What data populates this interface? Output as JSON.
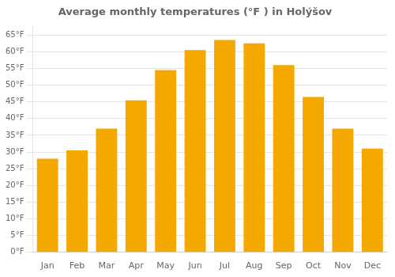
{
  "chart_data": {
    "type": "bar",
    "title": "Average monthly temperatures (°F ) in Holýšov",
    "categories": [
      "Jan",
      "Feb",
      "Mar",
      "Apr",
      "May",
      "Jun",
      "Jul",
      "Aug",
      "Sep",
      "Oct",
      "Nov",
      "Dec"
    ],
    "values": [
      28,
      30.5,
      37,
      45.5,
      54.5,
      60.5,
      63.5,
      62.5,
      56,
      46.5,
      37,
      31
    ],
    "color": "#F5A800",
    "ylim": [
      0,
      68
    ],
    "yticks": [
      {
        "value": 0,
        "label": "0°F"
      },
      {
        "value": 5,
        "label": "5°F"
      },
      {
        "value": 10,
        "label": "10°F"
      },
      {
        "value": 15,
        "label": "15°F"
      },
      {
        "value": 20,
        "label": "20°F"
      },
      {
        "value": 25,
        "label": "25°F"
      },
      {
        "value": 30,
        "label": "30°F"
      },
      {
        "value": 35,
        "label": "35°F"
      },
      {
        "value": 40,
        "label": "40°F"
      },
      {
        "value": 45,
        "label": "45°F"
      },
      {
        "value": 50,
        "label": "50°F"
      },
      {
        "value": 55,
        "label": "55°F"
      },
      {
        "value": 60,
        "label": "60°F"
      },
      {
        "value": 65,
        "label": "65°F"
      }
    ],
    "grid": true
  }
}
